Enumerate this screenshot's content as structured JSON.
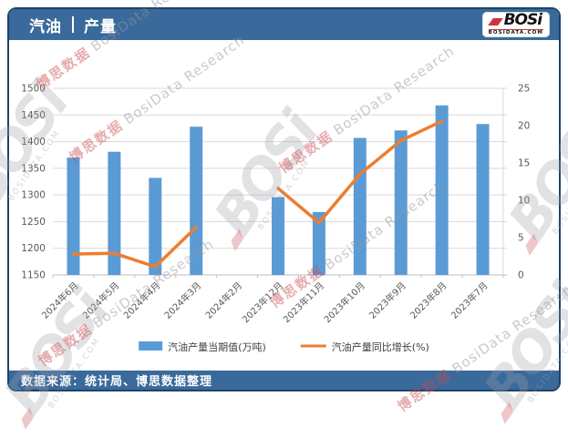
{
  "header": {
    "title_primary": "汽油",
    "title_secondary": "产量",
    "logo": {
      "brand": "BOSi",
      "domain": "BOSIDATA.COM"
    }
  },
  "footer": {
    "source": "数据来源：统计局、博思数据整理"
  },
  "watermarks": {
    "brand": "BOSi",
    "domain": "BOSIDATA.COM",
    "cn": "博思数据",
    "en": "BosiData Research"
  },
  "colors": {
    "header_blue": "#3A6A9B",
    "card_border": "#1E4467",
    "bar": "#5B9BD5",
    "line": "#ED7D31",
    "gridline": "#D9D9D9",
    "axis_line": "#BFBFBF",
    "axis_text": "#595959"
  },
  "chart_data": {
    "type": "combo",
    "title": "汽油 | 产量",
    "categories": [
      "2024年6月",
      "2024年5月",
      "2024年4月",
      "2024年3月",
      "2024年2月",
      "2023年12月",
      "2023年11月",
      "2023年10月",
      "2023年9月",
      "2023年8月",
      "2023年7月"
    ],
    "series": [
      {
        "name": "汽油产量当期值(万吨)",
        "type": "bar",
        "axis": "left",
        "color": "#5B9BD5",
        "values": [
          1370,
          1381,
          1332,
          1428,
          null,
          1296,
          1268,
          1407,
          1421,
          1468,
          1433
        ]
      },
      {
        "name": "汽油产量同比增长(%)",
        "type": "line",
        "axis": "right",
        "color": "#ED7D31",
        "values": [
          2.8,
          2.9,
          1.1,
          6.4,
          null,
          11.6,
          7.0,
          13.5,
          18.0,
          20.6,
          null
        ]
      }
    ],
    "left_axis": {
      "min": 1150,
      "max": 1500,
      "step": 50
    },
    "right_axis": {
      "min": 0,
      "max": 25,
      "step": 5
    },
    "grid": true,
    "legend_position": "bottom"
  }
}
